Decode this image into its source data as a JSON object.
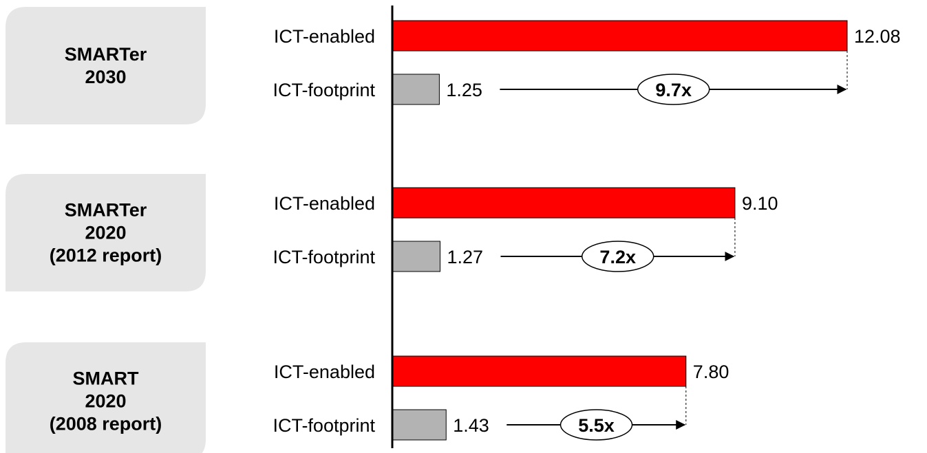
{
  "chart_data": {
    "type": "bar",
    "orientation": "horizontal",
    "groups": [
      {
        "label_lines": [
          "SMARTer",
          "2030"
        ],
        "rows": [
          {
            "label": "ICT-enabled",
            "value": 12.08,
            "display": "12.08",
            "color": "#ff0000"
          },
          {
            "label": "ICT-footprint",
            "value": 1.25,
            "display": "1.25",
            "color": "#b3b3b3"
          }
        ],
        "ratio": "9.7x"
      },
      {
        "label_lines": [
          "SMARTer",
          "2020",
          "(2012 report)"
        ],
        "rows": [
          {
            "label": "ICT-enabled",
            "value": 9.1,
            "display": "9.10",
            "color": "#ff0000"
          },
          {
            "label": "ICT-footprint",
            "value": 1.27,
            "display": "1.27",
            "color": "#b3b3b3"
          }
        ],
        "ratio": "7.2x"
      },
      {
        "label_lines": [
          "SMART",
          "2020",
          "(2008 report)"
        ],
        "rows": [
          {
            "label": "ICT-enabled",
            "value": 7.8,
            "display": "7.80",
            "color": "#ff0000"
          },
          {
            "label": "ICT-footprint",
            "value": 1.43,
            "display": "1.43",
            "color": "#b3b3b3"
          }
        ],
        "ratio": "5.5x"
      }
    ],
    "xlim": [
      0,
      12.08
    ],
    "grid": false,
    "legend": "none"
  }
}
